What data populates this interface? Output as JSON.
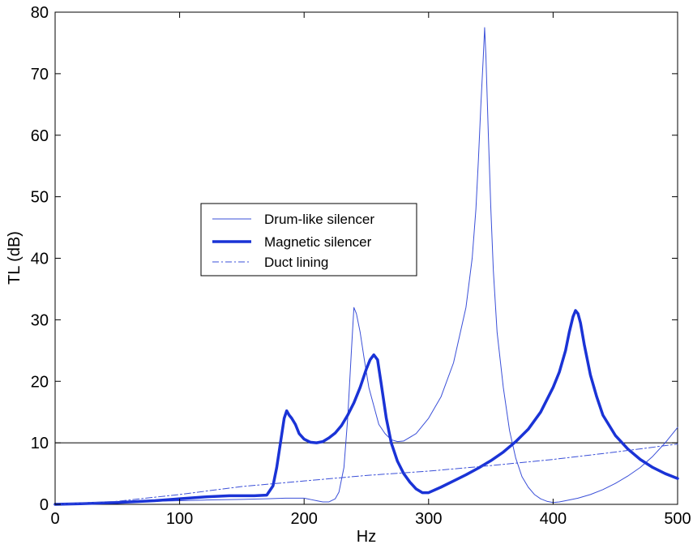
{
  "chart_data": {
    "type": "line",
    "title": "",
    "xlabel": "Hz",
    "ylabel": "TL (dB)",
    "xlim": [
      0,
      500
    ],
    "ylim": [
      0,
      80
    ],
    "xticks": [
      0,
      100,
      200,
      300,
      400,
      500
    ],
    "yticks": [
      0,
      10,
      20,
      30,
      40,
      50,
      60,
      70,
      80
    ],
    "grid": false,
    "legend_position": "center-left",
    "reference_line": {
      "y": 10
    },
    "series": [
      {
        "name": "Drum-like silencer",
        "style": "thin-solid",
        "color": "#3a4fd8",
        "x": [
          0,
          20,
          50,
          80,
          100,
          120,
          150,
          170,
          185,
          195,
          200,
          205,
          210,
          215,
          220,
          225,
          228,
          232,
          235,
          238,
          240,
          242,
          245,
          248,
          252,
          256,
          260,
          265,
          270,
          275,
          280,
          290,
          300,
          310,
          320,
          330,
          335,
          338,
          340,
          342,
          344,
          345,
          346,
          348,
          350,
          352,
          355,
          360,
          365,
          370,
          375,
          380,
          385,
          390,
          395,
          400,
          405,
          410,
          420,
          430,
          440,
          450,
          460,
          470,
          480,
          490,
          500
        ],
        "y": [
          0,
          0.1,
          0.3,
          0.5,
          0.6,
          0.7,
          0.8,
          0.9,
          1.0,
          1.0,
          1.0,
          0.8,
          0.6,
          0.4,
          0.4,
          0.9,
          2.0,
          6,
          14,
          25,
          32,
          31,
          28,
          24,
          19,
          16,
          13,
          11.5,
          10.5,
          10.2,
          10.3,
          11.5,
          14,
          17.5,
          23,
          32,
          40,
          48,
          56,
          65,
          73,
          77.5,
          73,
          60,
          48,
          38,
          28,
          19,
          12,
          7.5,
          4.5,
          2.8,
          1.6,
          0.9,
          0.5,
          0.3,
          0.4,
          0.6,
          1.0,
          1.6,
          2.4,
          3.4,
          4.6,
          6.0,
          7.8,
          10.0,
          12.5
        ]
      },
      {
        "name": "Magnetic silencer",
        "style": "thick-solid",
        "color": "#1a33d6",
        "x": [
          0,
          20,
          50,
          80,
          100,
          120,
          140,
          160,
          170,
          175,
          178,
          181,
          184,
          186,
          188,
          190,
          193,
          196,
          200,
          205,
          210,
          215,
          220,
          225,
          230,
          235,
          240,
          245,
          250,
          253,
          256,
          259,
          262,
          266,
          270,
          275,
          280,
          285,
          290,
          295,
          300,
          310,
          320,
          330,
          340,
          350,
          360,
          370,
          380,
          390,
          400,
          405,
          410,
          413,
          416,
          418,
          420,
          422,
          425,
          430,
          435,
          440,
          450,
          460,
          470,
          480,
          490,
          500
        ],
        "y": [
          0,
          0.1,
          0.3,
          0.6,
          0.9,
          1.2,
          1.4,
          1.4,
          1.5,
          3.0,
          6,
          10,
          14,
          15.2,
          14.5,
          14,
          13,
          11.5,
          10.6,
          10.1,
          10.0,
          10.2,
          10.8,
          11.6,
          12.8,
          14.5,
          16.5,
          19,
          22,
          23.5,
          24.3,
          23.5,
          19.5,
          14,
          10,
          7,
          5,
          3.6,
          2.5,
          1.9,
          1.9,
          2.8,
          3.8,
          4.8,
          5.9,
          7.1,
          8.5,
          10.2,
          12.2,
          15,
          19,
          21.5,
          25,
          28,
          30.5,
          31.5,
          31,
          29.5,
          26,
          21,
          17.5,
          14.5,
          11.2,
          9,
          7.3,
          6,
          5,
          4.2
        ]
      },
      {
        "name": "Duct lining",
        "style": "dash-dot",
        "color": "#3a4fd8",
        "x": [
          0,
          50,
          100,
          150,
          200,
          250,
          300,
          350,
          400,
          450,
          500
        ],
        "y": [
          0,
          0.5,
          1.6,
          2.9,
          3.8,
          4.7,
          5.4,
          6.3,
          7.3,
          8.5,
          9.8
        ]
      }
    ]
  }
}
